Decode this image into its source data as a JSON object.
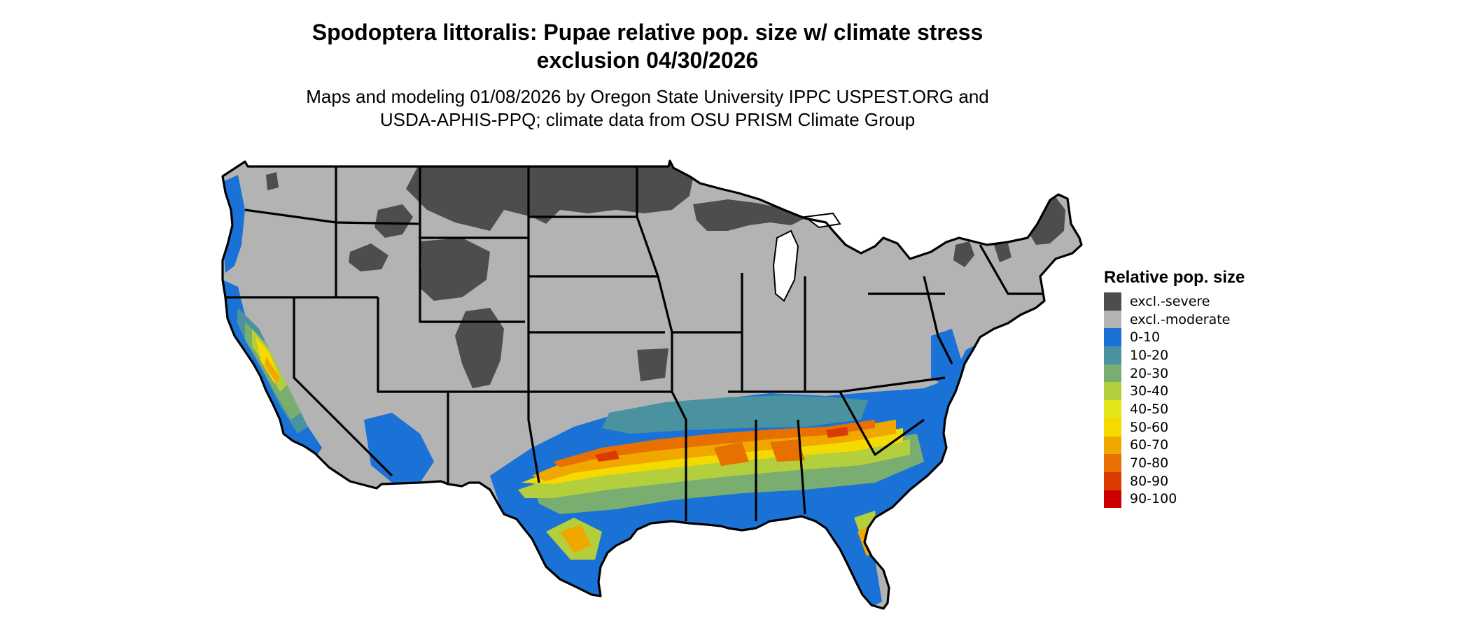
{
  "title_line1": "Spodoptera littoralis: Pupae relative pop. size w/ climate stress",
  "title_line2": "exclusion 04/30/2026",
  "subtitle_line1": "Maps and modeling 01/08/2026 by Oregon State University IPPC USPEST.ORG and",
  "subtitle_line2": "USDA-APHIS-PPQ; climate data from OSU PRISM Climate Group",
  "legend": {
    "title": "Relative pop. size",
    "items": [
      {
        "label": "excl.-severe",
        "color": "#4d4d4d"
      },
      {
        "label": "excl.-moderate",
        "color": "#b3b3b3"
      },
      {
        "label": "0-10",
        "color": "#1a72d6"
      },
      {
        "label": "10-20",
        "color": "#4a92a0"
      },
      {
        "label": "20-30",
        "color": "#7aae70"
      },
      {
        "label": "30-40",
        "color": "#b4cf3e"
      },
      {
        "label": "40-50",
        "color": "#e2e61a"
      },
      {
        "label": "50-60",
        "color": "#f5da00"
      },
      {
        "label": "60-70",
        "color": "#f0a800"
      },
      {
        "label": "70-80",
        "color": "#e87000"
      },
      {
        "label": "80-90",
        "color": "#db3a00"
      },
      {
        "label": "90-100",
        "color": "#cc0000"
      }
    ]
  }
}
